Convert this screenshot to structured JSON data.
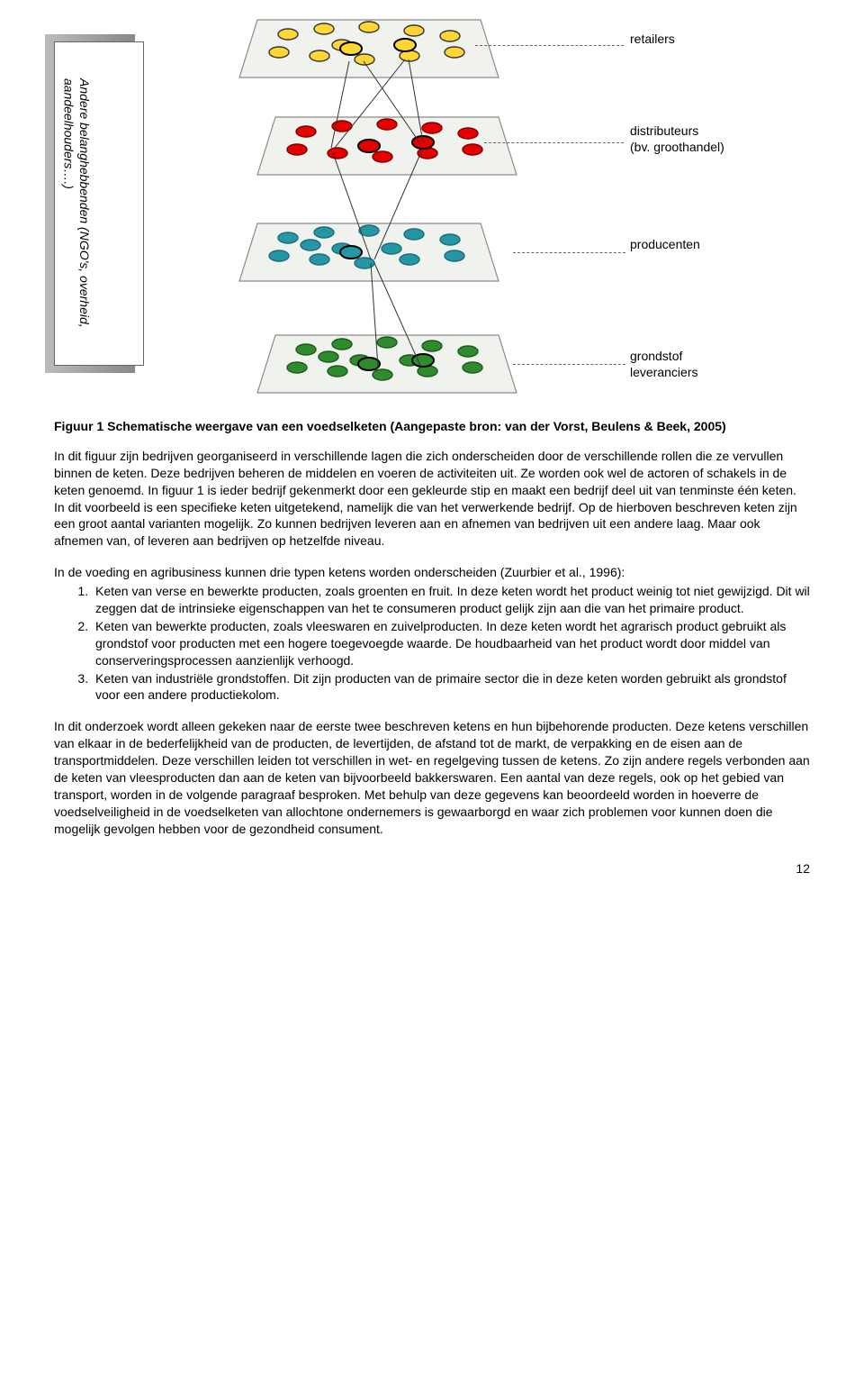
{
  "figure": {
    "side_text": "Andere belanghebbenden (NGO's, overheid, aandeelhouders….)",
    "labels": {
      "layer0": "retailers",
      "layer1a": "distributeurs",
      "layer1b": "(bv. groothandel)",
      "layer2": "producenten",
      "layer3a": "grondstof",
      "layer3b": "leveranciers"
    },
    "layers": [
      {
        "fill": "#ffd633",
        "stroke": "#333333",
        "dot_count": 11,
        "highlight_count": 2
      },
      {
        "fill": "#e60000",
        "stroke": "#7a0000",
        "dot_count": 10,
        "highlight_count": 2
      },
      {
        "fill": "#2596a6",
        "stroke": "#1b6d78",
        "dot_count": 13,
        "highlight_count": 1
      },
      {
        "fill": "#2e8b2e",
        "stroke": "#1d5a1d",
        "dot_count": 13,
        "highlight_count": 2
      }
    ],
    "plane_fill": "#f0f2ee",
    "plane_stroke": "#8a8a8a",
    "highlight_stroke": "#000000",
    "caption": "Figuur 1 Schematische weergave van een voedselketen (Aangepaste bron: van der Vorst, Beulens & Beek, 2005)"
  },
  "para1": "In dit figuur zijn bedrijven georganiseerd in verschillende lagen die zich onderscheiden door de verschillende rollen die ze vervullen binnen de keten. Deze bedrijven beheren de middelen en voeren de activiteiten uit. Ze worden ook wel de actoren of schakels in de keten genoemd. In figuur 1 is ieder bedrijf gekenmerkt door een gekleurde stip en maakt een bedrijf deel uit van tenminste één keten. In dit voorbeeld is een specifieke keten uitgetekend, namelijk die van het verwerkende bedrijf. Op de hierboven beschreven keten zijn een groot aantal varianten mogelijk. Zo kunnen bedrijven leveren aan en afnemen van bedrijven uit een andere laag. Maar ook afnemen van, of leveren aan bedrijven op hetzelfde niveau.",
  "para2_intro": "In de voeding en agribusiness kunnen drie typen ketens worden onderscheiden (Zuurbier et al., 1996):",
  "list": [
    "Keten van verse en bewerkte producten, zoals groenten en fruit. In deze keten wordt het product weinig tot niet gewijzigd. Dit wil zeggen dat de intrinsieke eigenschappen van het te consumeren product gelijk zijn aan die van het primaire product.",
    "Keten van bewerkte producten, zoals vleeswaren en zuivelproducten. In deze keten wordt het agrarisch product gebruikt als grondstof voor producten met een hogere toegevoegde waarde. De houdbaarheid van het product wordt door middel van conserveringsprocessen aanzienlijk verhoogd.",
    "Keten van industriële grondstoffen. Dit zijn producten van de primaire sector die in deze keten worden gebruikt als grondstof voor een andere productiekolom."
  ],
  "para3": "In dit onderzoek wordt alleen gekeken naar de eerste twee beschreven ketens en hun bijbehorende producten. Deze ketens verschillen van elkaar in de bederfelijkheid van de producten, de levertijden, de afstand tot de markt, de verpakking en de eisen aan de transportmiddelen. Deze verschillen leiden tot verschillen in wet- en regelgeving tussen de ketens. Zo zijn andere regels verbonden aan de keten van vleesproducten dan aan de keten van bijvoorbeeld bakkerswaren. Een aantal van deze regels, ook op het gebied van transport, worden in de volgende paragraaf besproken. Met behulp van deze gegevens kan beoordeeld worden in hoeverre de voedselveiligheid in de voedselketen van allochtone ondernemers is gewaarborgd en waar zich problemen voor kunnen doen die mogelijk gevolgen hebben voor de gezondheid consument.",
  "page_number": "12"
}
